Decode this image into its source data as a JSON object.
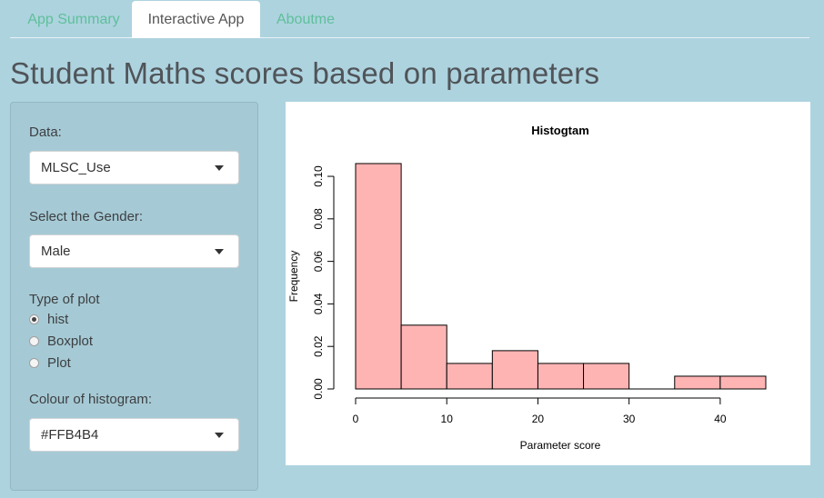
{
  "tabs": [
    {
      "label": "App Summary",
      "active": false
    },
    {
      "label": "Interactive App",
      "active": true
    },
    {
      "label": "Aboutme",
      "active": false
    }
  ],
  "page_title": "Student Maths scores based on parameters",
  "sidebar": {
    "data_label": "Data:",
    "data_value": "MLSC_Use",
    "gender_label": "Select the Gender:",
    "gender_value": "Male",
    "plot_type_label": "Type of plot",
    "plot_types": [
      {
        "label": "hist",
        "selected": true
      },
      {
        "label": "Boxplot",
        "selected": false
      },
      {
        "label": "Plot",
        "selected": false
      }
    ],
    "colour_label": "Colour of histogram:",
    "colour_value": "#FFB4B4"
  },
  "colors": {
    "background": "#add3df",
    "tab_link": "#5fbf9a",
    "bar_fill": "#FFB4B4"
  },
  "chart_data": {
    "type": "bar",
    "title": "Histogtam",
    "xlabel": "Parameter score",
    "ylabel": "Frequency",
    "bins": [
      [
        0,
        5
      ],
      [
        5,
        10
      ],
      [
        10,
        15
      ],
      [
        15,
        20
      ],
      [
        20,
        25
      ],
      [
        25,
        30
      ],
      [
        30,
        35
      ],
      [
        35,
        40
      ],
      [
        40,
        45
      ]
    ],
    "values": [
      0.106,
      0.03,
      0.012,
      0.018,
      0.012,
      0.012,
      0.0,
      0.006,
      0.006
    ],
    "x_ticks": [
      0,
      10,
      20,
      30,
      40
    ],
    "y_ticks": [
      0.0,
      0.02,
      0.04,
      0.06,
      0.08,
      0.1
    ],
    "y_tick_labels": [
      "0.00",
      "0.02",
      "0.04",
      "0.06",
      "0.08",
      "0.10"
    ],
    "xlim": [
      0,
      45
    ],
    "ylim": [
      0,
      0.106
    ],
    "grid": false
  }
}
